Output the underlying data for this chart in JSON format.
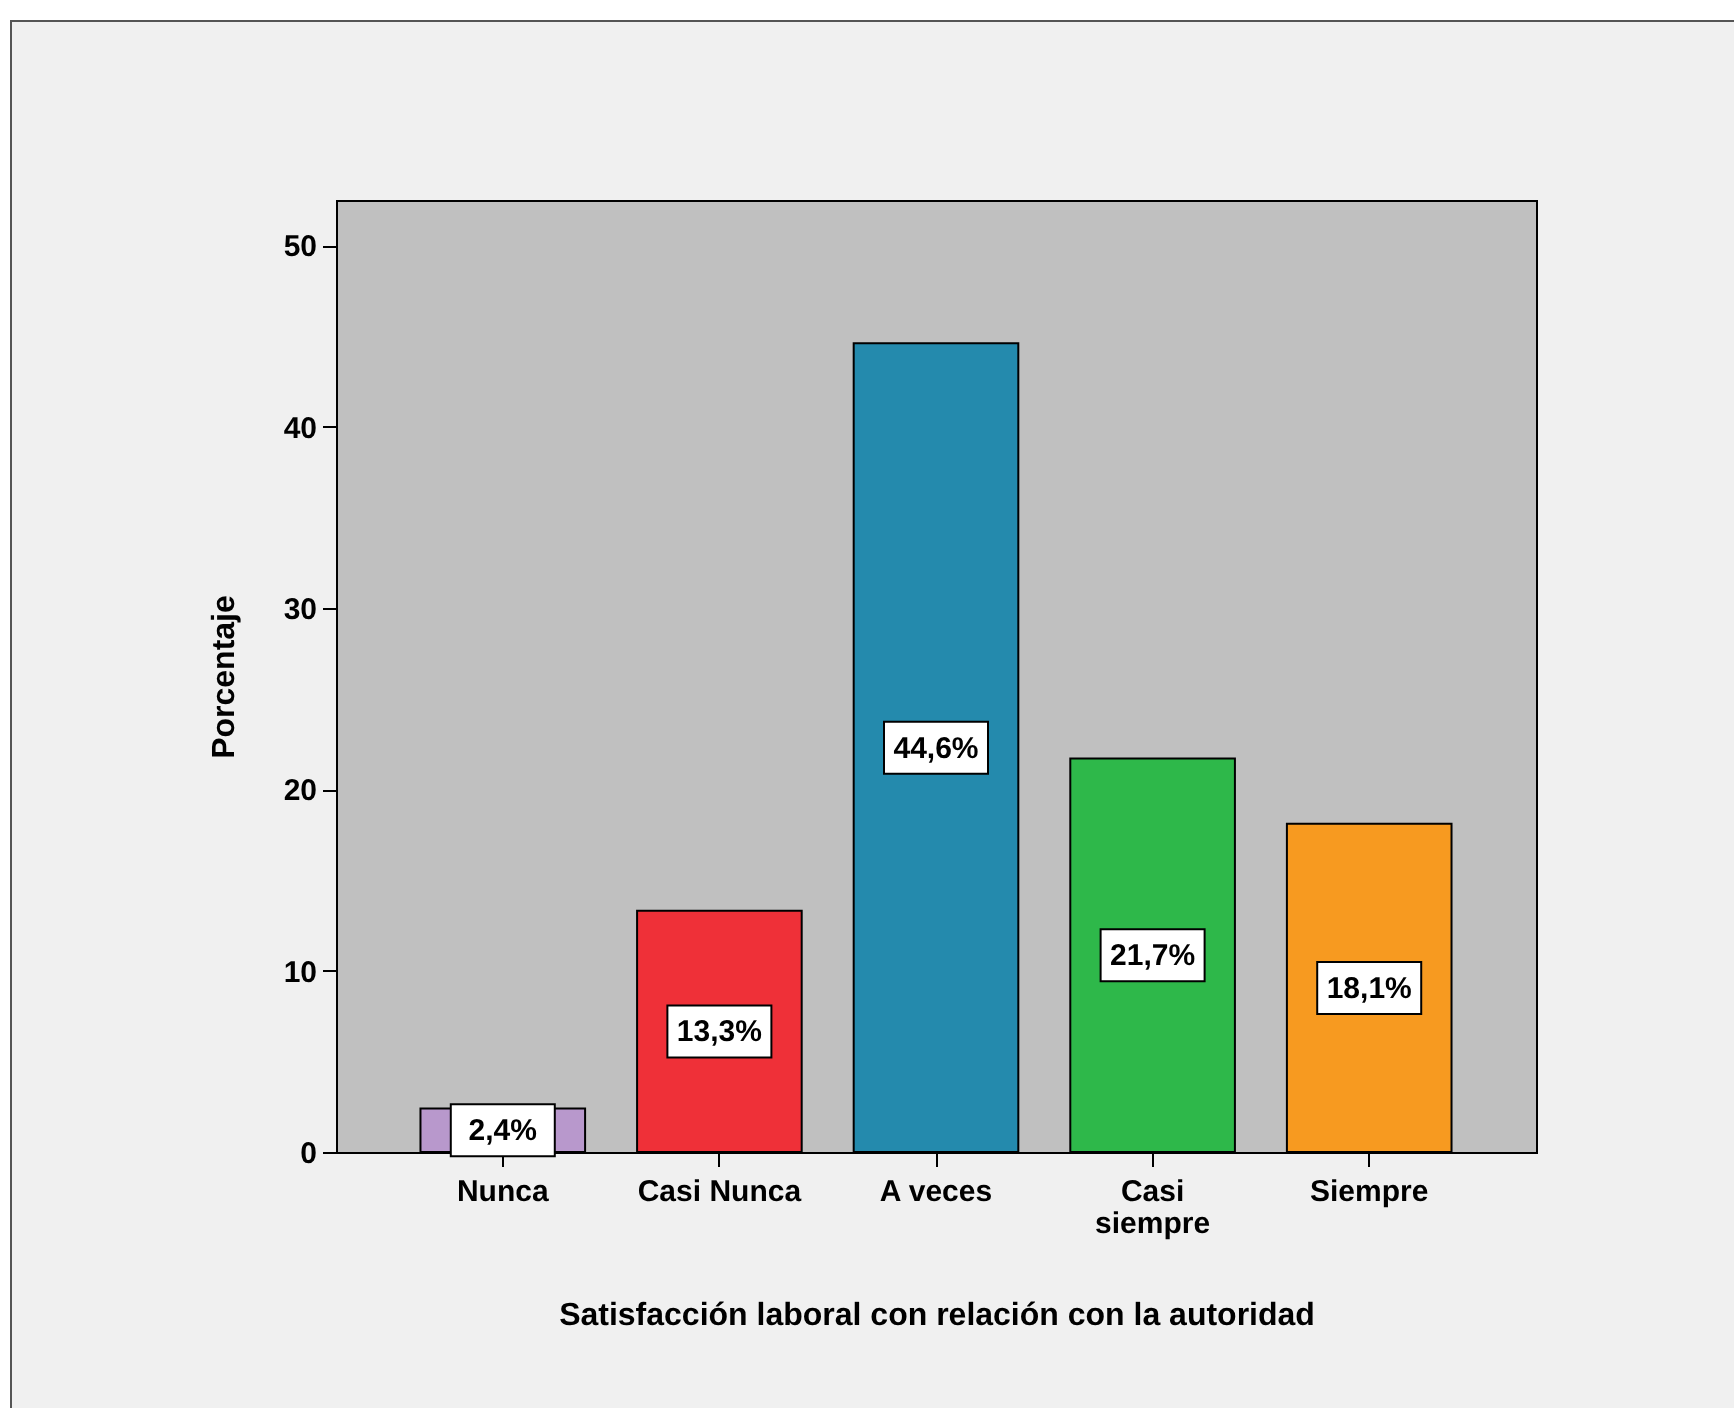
{
  "chart_data": {
    "type": "bar",
    "xlabel": "Satisfacción laboral con relación con la autoridad",
    "ylabel": "Porcentaje",
    "categories": [
      "Nunca",
      "Casi Nunca",
      "A veces",
      "Casi siempre",
      "Siempre"
    ],
    "values": [
      2.4,
      13.3,
      44.6,
      21.7,
      18.1
    ],
    "colors": [
      "#b898cc",
      "#ef3038",
      "#248aad",
      "#2eb84a",
      "#f79a20"
    ],
    "value_labels": [
      "2,4%",
      "13,3%",
      "44,6%",
      "21,7%",
      "18,1%"
    ],
    "ylim": [
      0,
      52.5
    ],
    "yticks": [
      0,
      10,
      20,
      30,
      40,
      50
    ]
  }
}
